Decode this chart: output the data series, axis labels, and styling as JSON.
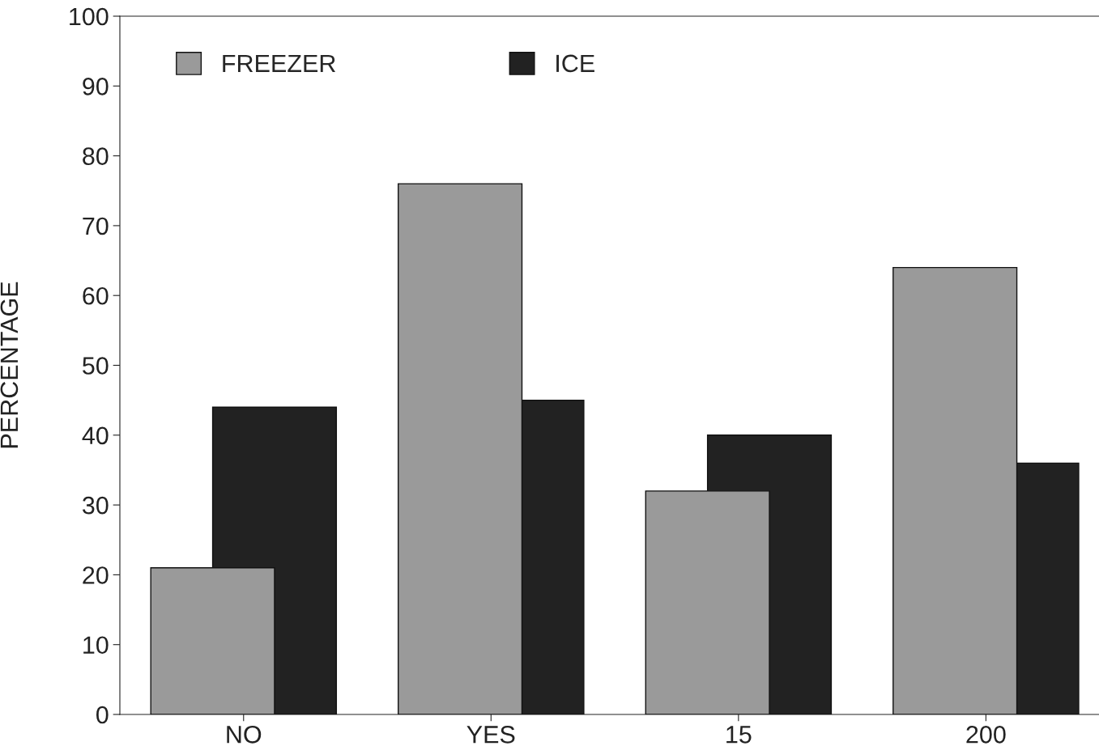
{
  "chart_data": {
    "type": "bar",
    "ylabel": "PERCENTAGE",
    "categories": [
      "NO",
      "YES",
      "15",
      "200"
    ],
    "series": [
      {
        "name": "FREEZER",
        "color": "#9a9a9a",
        "values": [
          21,
          76,
          32,
          64
        ]
      },
      {
        "name": "ICE",
        "color": "#222222",
        "values": [
          44,
          45,
          40,
          36
        ]
      }
    ],
    "ylim": [
      0,
      100
    ],
    "yticks": [
      0,
      10,
      20,
      30,
      40,
      50,
      60,
      70,
      80,
      90,
      100
    ],
    "grid": false,
    "legend": "top left"
  }
}
